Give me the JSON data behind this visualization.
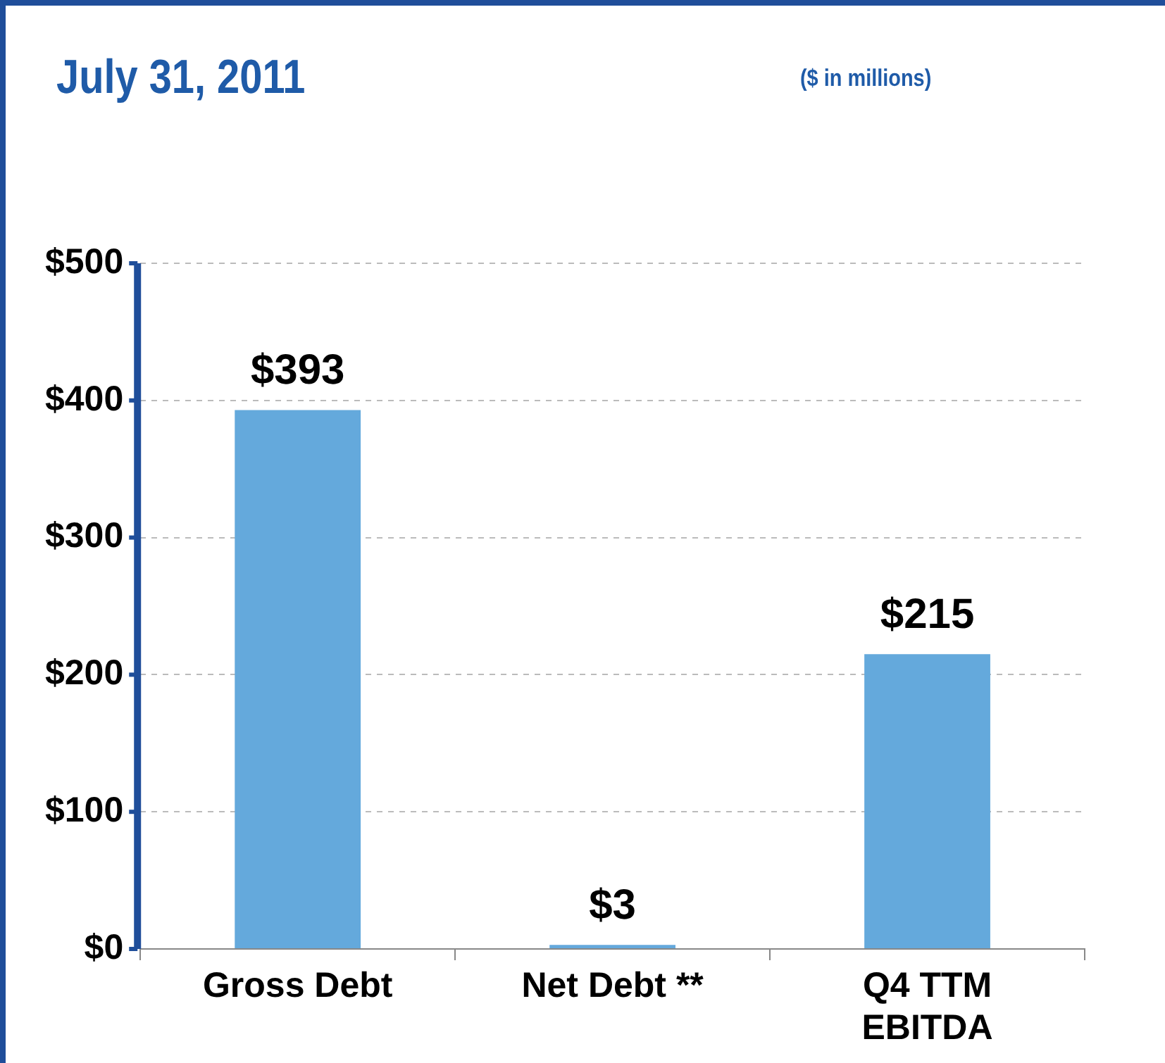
{
  "chart_data": {
    "type": "bar",
    "title": "July 31, 2011",
    "subtitle": "($ in millions)",
    "categories": [
      "Gross Debt",
      "Net Debt **",
      "Q4 TTM EBITDA"
    ],
    "values": [
      393,
      3,
      215
    ],
    "value_labels": [
      "$393",
      "$3",
      "$215"
    ],
    "color": "#64a9dc",
    "ylim": [
      0,
      500
    ],
    "yticks": [
      {
        "value": 0,
        "label": "$0"
      },
      {
        "value": 100,
        "label": "$100"
      },
      {
        "value": 200,
        "label": "$200"
      },
      {
        "value": 300,
        "label": "$300"
      },
      {
        "value": 400,
        "label": "$400"
      },
      {
        "value": 500,
        "label": "$500"
      }
    ],
    "grid": "y",
    "legend": false
  }
}
